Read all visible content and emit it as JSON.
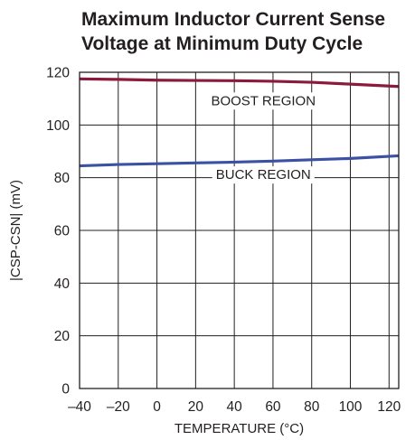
{
  "chart_data": {
    "type": "line",
    "title_lines": [
      "Maximum Inductor Current Sense",
      "Voltage at Minimum Duty Cycle"
    ],
    "xlabel": "TEMPERATURE (°C)",
    "ylabel": "|CSP-CSN| (mV)",
    "xlim": [
      -40,
      125
    ],
    "ylim": [
      0,
      120
    ],
    "x_ticks": [
      -40,
      -20,
      0,
      20,
      40,
      60,
      80,
      100,
      120
    ],
    "y_ticks": [
      0,
      20,
      40,
      60,
      80,
      100,
      120
    ],
    "x_tick_labels": [
      "–40",
      "–20",
      "0",
      "20",
      "40",
      "60",
      "80",
      "100",
      "120"
    ],
    "y_tick_labels": [
      "0",
      "20",
      "40",
      "60",
      "80",
      "100",
      "120"
    ],
    "grid": true,
    "series": [
      {
        "name": "BOOST REGION",
        "color": "#8b1a3c",
        "x": [
          -40,
          -20,
          0,
          20,
          40,
          60,
          80,
          100,
          125
        ],
        "y": [
          117.5,
          117.3,
          117.0,
          116.9,
          116.8,
          116.6,
          116.2,
          115.5,
          114.6
        ]
      },
      {
        "name": "BUCK REGION",
        "color": "#3b52a4",
        "x": [
          -40,
          -20,
          0,
          20,
          40,
          60,
          80,
          100,
          125
        ],
        "y": [
          84.5,
          85.0,
          85.3,
          85.6,
          85.9,
          86.3,
          86.8,
          87.3,
          88.3
        ]
      }
    ]
  }
}
